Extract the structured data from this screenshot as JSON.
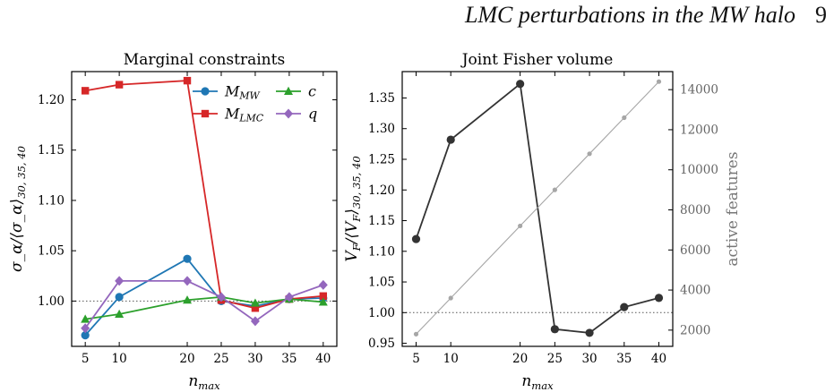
{
  "header": {
    "running_title": "LMC perturbations in the MW halo",
    "page_number": "9"
  },
  "chart_data": [
    {
      "type": "line",
      "title": "Marginal constraints",
      "xlabel": "n_max",
      "ylabel": "σ_α/⟨σ_α⟩_{30, 35, 40}",
      "x": [
        5,
        10,
        20,
        25,
        30,
        35,
        40
      ],
      "xticks": [
        5,
        10,
        20,
        25,
        30,
        35,
        40
      ],
      "yticks": [
        1.0,
        1.05,
        1.1,
        1.15,
        1.2
      ],
      "ylim": [
        0.955,
        1.228
      ],
      "xlim": [
        3,
        42
      ],
      "reference_line": 1.0,
      "legend_position": "top-right",
      "series": [
        {
          "name": "M_MW",
          "color": "#1f77b4",
          "marker": "circle",
          "values": [
            0.966,
            1.004,
            1.042,
            1.0,
            0.995,
            1.002,
            1.003
          ]
        },
        {
          "name": "M_LMC",
          "color": "#d62728",
          "marker": "square",
          "values": [
            1.209,
            1.215,
            1.219,
            1.001,
            0.993,
            1.002,
            1.005
          ]
        },
        {
          "name": "c",
          "color": "#2ca02c",
          "marker": "triangle",
          "values": [
            0.982,
            0.987,
            1.001,
            1.004,
            0.998,
            1.002,
            0.999
          ]
        },
        {
          "name": "q",
          "color": "#9467bd",
          "marker": "diamond",
          "values": [
            0.973,
            1.02,
            1.02,
            1.004,
            0.98,
            1.004,
            1.016
          ]
        }
      ]
    },
    {
      "type": "line",
      "title": "Joint Fisher volume",
      "xlabel": "n_max",
      "ylabel": "V_F/⟨V_F⟩_{30, 35, 40}",
      "y2label": "active features",
      "x": [
        5,
        10,
        20,
        25,
        30,
        35,
        40
      ],
      "xticks": [
        5,
        10,
        20,
        25,
        30,
        35,
        40
      ],
      "yticks": [
        0.95,
        1.0,
        1.05,
        1.1,
        1.15,
        1.2,
        1.25,
        1.3,
        1.35
      ],
      "ylim": [
        0.945,
        1.393
      ],
      "xlim": [
        3,
        42
      ],
      "y2ticks": [
        2000,
        4000,
        6000,
        8000,
        10000,
        12000,
        14000
      ],
      "y2lim": [
        1190,
        14900
      ],
      "reference_line": 1.0,
      "series": [
        {
          "color": "#333333",
          "marker": "circle",
          "axis": "left",
          "values": [
            1.12,
            1.282,
            1.373,
            0.973,
            0.967,
            1.009,
            1.024
          ]
        },
        {
          "color": "#a6a6a6",
          "marker": "circle-small",
          "axis": "right",
          "values": [
            1800,
            3600,
            7200,
            9000,
            10800,
            12600,
            14400
          ]
        }
      ]
    }
  ]
}
